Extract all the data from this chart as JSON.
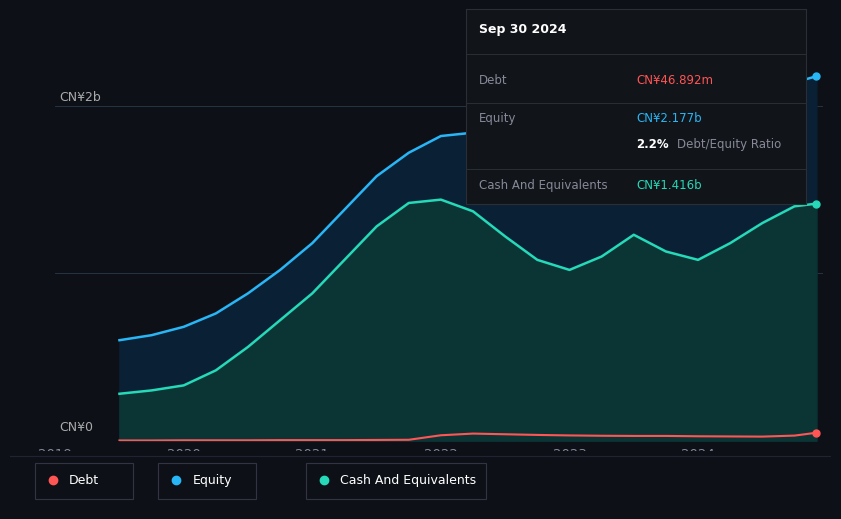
{
  "bg_color": "#0d1117",
  "plot_bg_color": "#0d1b2a",
  "ylabel_top": "CN¥2b",
  "ylabel_bottom": "CN¥0",
  "x_ticks": [
    "2019",
    "2020",
    "2021",
    "2022",
    "2023",
    "2024"
  ],
  "legend": [
    "Debt",
    "Equity",
    "Cash And Equivalents"
  ],
  "legend_colors": [
    "#ff5555",
    "#29b6f6",
    "#26d9b8"
  ],
  "equity_color": "#29b6f6",
  "equity_fill": "#0d2a3d",
  "cash_color": "#26d9b8",
  "cash_fill": "#0d3030",
  "debt_color": "#ff5555",
  "tooltip": {
    "date": "Sep 30 2024",
    "debt_label": "Debt",
    "debt_value": "CN¥46.892m",
    "equity_label": "Equity",
    "equity_value": "CN¥2.177b",
    "ratio_value": "2.2%",
    "ratio_label": "Debt/Equity Ratio",
    "cash_label": "Cash And Equivalents",
    "cash_value": "CN¥1.416b"
  },
  "x": [
    2019.5,
    2019.75,
    2020.0,
    2020.25,
    2020.5,
    2020.75,
    2021.0,
    2021.25,
    2021.5,
    2021.75,
    2022.0,
    2022.25,
    2022.5,
    2022.75,
    2023.0,
    2023.25,
    2023.5,
    2023.75,
    2024.0,
    2024.25,
    2024.5,
    2024.75,
    2024.92
  ],
  "equity": [
    0.6,
    0.63,
    0.68,
    0.76,
    0.88,
    1.02,
    1.18,
    1.38,
    1.58,
    1.72,
    1.82,
    1.84,
    1.79,
    1.73,
    1.68,
    1.72,
    1.8,
    1.87,
    1.93,
    1.99,
    2.07,
    2.14,
    2.177
  ],
  "cash": [
    0.28,
    0.3,
    0.33,
    0.42,
    0.56,
    0.72,
    0.88,
    1.08,
    1.28,
    1.42,
    1.44,
    1.37,
    1.22,
    1.08,
    1.02,
    1.1,
    1.23,
    1.13,
    1.08,
    1.18,
    1.3,
    1.4,
    1.416
  ],
  "debt": [
    0.001,
    0.001,
    0.002,
    0.002,
    0.002,
    0.003,
    0.003,
    0.003,
    0.004,
    0.005,
    0.032,
    0.042,
    0.038,
    0.034,
    0.031,
    0.029,
    0.028,
    0.028,
    0.026,
    0.025,
    0.024,
    0.03,
    0.047
  ],
  "ylim": [
    0,
    2.2
  ],
  "xlim": [
    2019.0,
    2024.97
  ],
  "grid_lines": [
    0,
    1.0,
    2.0
  ]
}
